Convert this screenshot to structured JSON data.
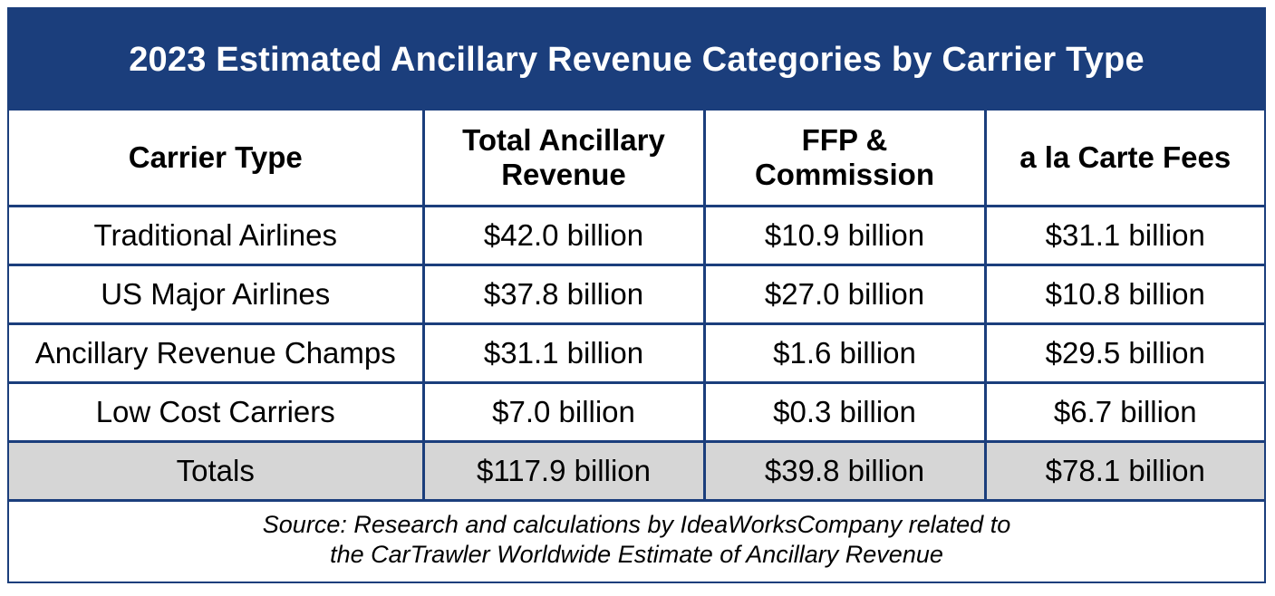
{
  "title": "2023 Estimated Ancillary Revenue Categories by Carrier Type",
  "headers": {
    "carrier_type": "Carrier Type",
    "total_line1": "Total Ancillary",
    "total_line2": "Revenue",
    "ffp_line1": "FFP &",
    "ffp_line2": "Commission",
    "alacarte": "a la Carte Fees"
  },
  "rows": [
    {
      "carrier": "Traditional Airlines",
      "total": "$42.0 billion",
      "ffp": "$10.9 billion",
      "alacarte": "$31.1 billion"
    },
    {
      "carrier": "US Major Airlines",
      "total": "$37.8 billion",
      "ffp": "$27.0 billion",
      "alacarte": "$10.8 billion"
    },
    {
      "carrier": "Ancillary Revenue Champs",
      "total": "$31.1 billion",
      "ffp": "$1.6 billion",
      "alacarte": "$29.5 billion"
    },
    {
      "carrier": "Low Cost Carriers",
      "total": "$7.0 billion",
      "ffp": "$0.3 billion",
      "alacarte": "$6.7 billion"
    }
  ],
  "totals": {
    "label": "Totals",
    "total": "$117.9 billion",
    "ffp": "$39.8 billion",
    "alacarte": "$78.1 billion"
  },
  "source": {
    "line1": "Source: Research and calculations by IdeaWorksCompany related to",
    "line2": "the CarTrawler Worldwide Estimate of Ancillary Revenue"
  },
  "colors": {
    "navy": "#1b3e7c",
    "totals_bg": "#d6d6d6"
  }
}
